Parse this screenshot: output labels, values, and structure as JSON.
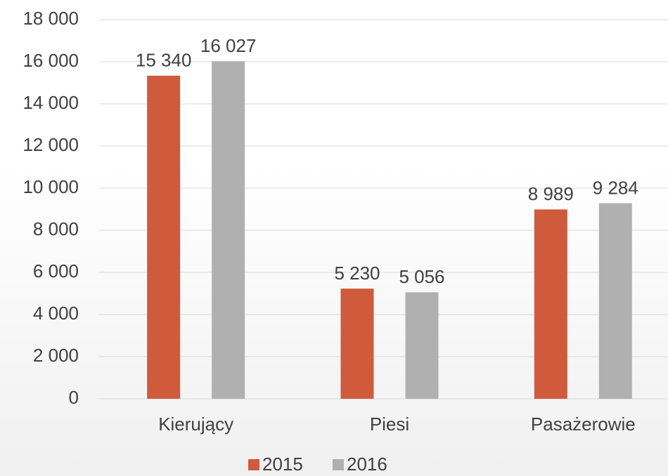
{
  "chart_data": {
    "type": "bar",
    "categories": [
      "Kierujący",
      "Piesi",
      "Pasażerowie"
    ],
    "series": [
      {
        "name": "2015",
        "color": "#d05a3c",
        "values": [
          15340,
          5230,
          8989
        ],
        "value_labels": [
          "15 340",
          "5 230",
          "8 989"
        ]
      },
      {
        "name": "2016",
        "color": "#b0b0b0",
        "values": [
          16027,
          5056,
          9284
        ],
        "value_labels": [
          "16 027",
          "5 056",
          "9 284"
        ]
      }
    ],
    "ylim": [
      0,
      18000
    ],
    "yticks": [
      0,
      {
        "value": 2000,
        "label": "2 000"
      },
      {
        "value": 4000,
        "label": "4 000"
      },
      {
        "value": 6000,
        "label": "6 000"
      },
      {
        "value": 8000,
        "label": "8 000"
      },
      {
        "value": 10000,
        "label": "10 000"
      },
      {
        "value": 12000,
        "label": "12 000"
      },
      {
        "value": 14000,
        "label": "14 000"
      },
      {
        "value": 16000,
        "label": "16 000"
      },
      {
        "value": 18000,
        "label": "18 000"
      }
    ],
    "grid": true,
    "legend": "bottom"
  }
}
